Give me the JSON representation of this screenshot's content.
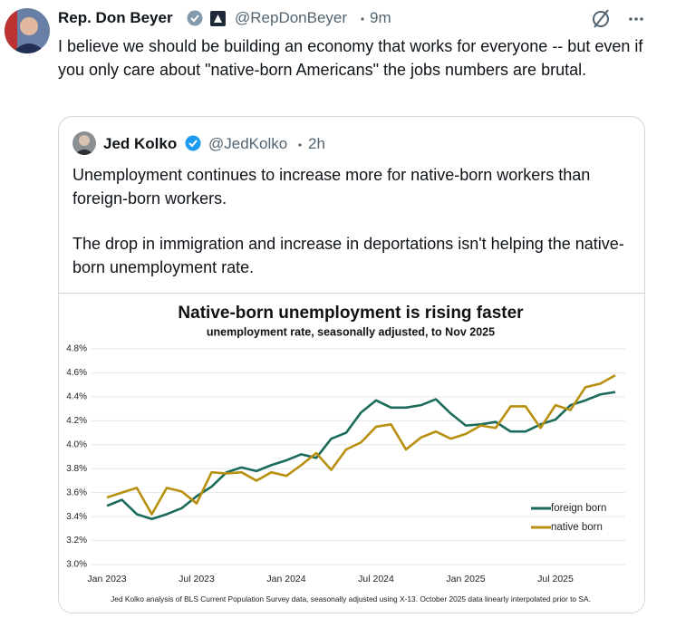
{
  "post": {
    "author": "Rep. Don Beyer",
    "handle": "@RepDonBeyer",
    "time": "9m",
    "text": "I believe we should be building an economy that works for everyone -- but even if you only care about \"native-born Americans\" the jobs numbers are brutal."
  },
  "quote": {
    "author": "Jed Kolko",
    "handle": "@JedKolko",
    "time": "2h",
    "paragraphs": [
      "Unemployment continues to increase more for native-born workers than foreign-born workers.",
      "The drop in immigration and increase in deportations isn't helping the native-born unemployment rate."
    ]
  },
  "chart_data": {
    "type": "line",
    "title": "Native-born unemployment is rising faster",
    "subtitle": "unemployment rate, seasonally adjusted, to Nov 2025",
    "footnote": "Jed Kolko analysis of BLS Current Population Survey data, seasonally adjusted using X-13. October 2025 data linearly interpolated prior to SA.",
    "categories": [
      "Jan 2023",
      null,
      null,
      null,
      null,
      null,
      "Jul 2023",
      null,
      null,
      null,
      null,
      null,
      "Jan 2024",
      null,
      null,
      null,
      null,
      null,
      "Jul 2024",
      null,
      null,
      null,
      null,
      null,
      "Jan 2025",
      null,
      null,
      null,
      null,
      null,
      "Jul 2025",
      null,
      null,
      null,
      null
    ],
    "series": [
      {
        "name": "foreign born",
        "color": "#1b6b5b",
        "values": [
          3.49,
          3.54,
          3.42,
          3.38,
          3.42,
          3.47,
          3.57,
          3.65,
          3.77,
          3.81,
          3.78,
          3.83,
          3.87,
          3.92,
          3.89,
          4.05,
          4.1,
          4.27,
          4.37,
          4.31,
          4.31,
          4.33,
          4.38,
          4.26,
          4.16,
          4.17,
          4.19,
          4.11,
          4.11,
          4.17,
          4.21,
          4.33,
          4.37,
          4.42,
          4.44
        ]
      },
      {
        "name": "native born",
        "color": "#b8900f",
        "values": [
          3.56,
          3.6,
          3.64,
          3.42,
          3.64,
          3.61,
          3.51,
          3.77,
          3.76,
          3.77,
          3.7,
          3.77,
          3.74,
          3.83,
          3.93,
          3.79,
          3.96,
          4.02,
          4.15,
          4.17,
          3.96,
          4.06,
          4.11,
          4.05,
          4.09,
          4.16,
          4.14,
          4.32,
          4.32,
          4.14,
          4.33,
          4.29,
          4.48,
          4.51,
          4.58
        ]
      }
    ],
    "ylim": [
      3.0,
      4.8
    ],
    "yticks": [
      {
        "value": 3.0,
        "label": "3.0%"
      },
      {
        "value": 3.2,
        "label": "3.2%"
      },
      {
        "value": 3.4,
        "label": "3.4%"
      },
      {
        "value": 3.6,
        "label": "3.6%"
      },
      {
        "value": 3.8,
        "label": "3.8%"
      },
      {
        "value": 4.0,
        "label": "4.0%"
      },
      {
        "value": 4.2,
        "label": "4.2%"
      },
      {
        "value": 4.4,
        "label": "4.4%"
      },
      {
        "value": 4.6,
        "label": "4.6%"
      },
      {
        "value": 4.8,
        "label": "4.8%"
      }
    ],
    "grid": true,
    "legend": "lower right"
  }
}
